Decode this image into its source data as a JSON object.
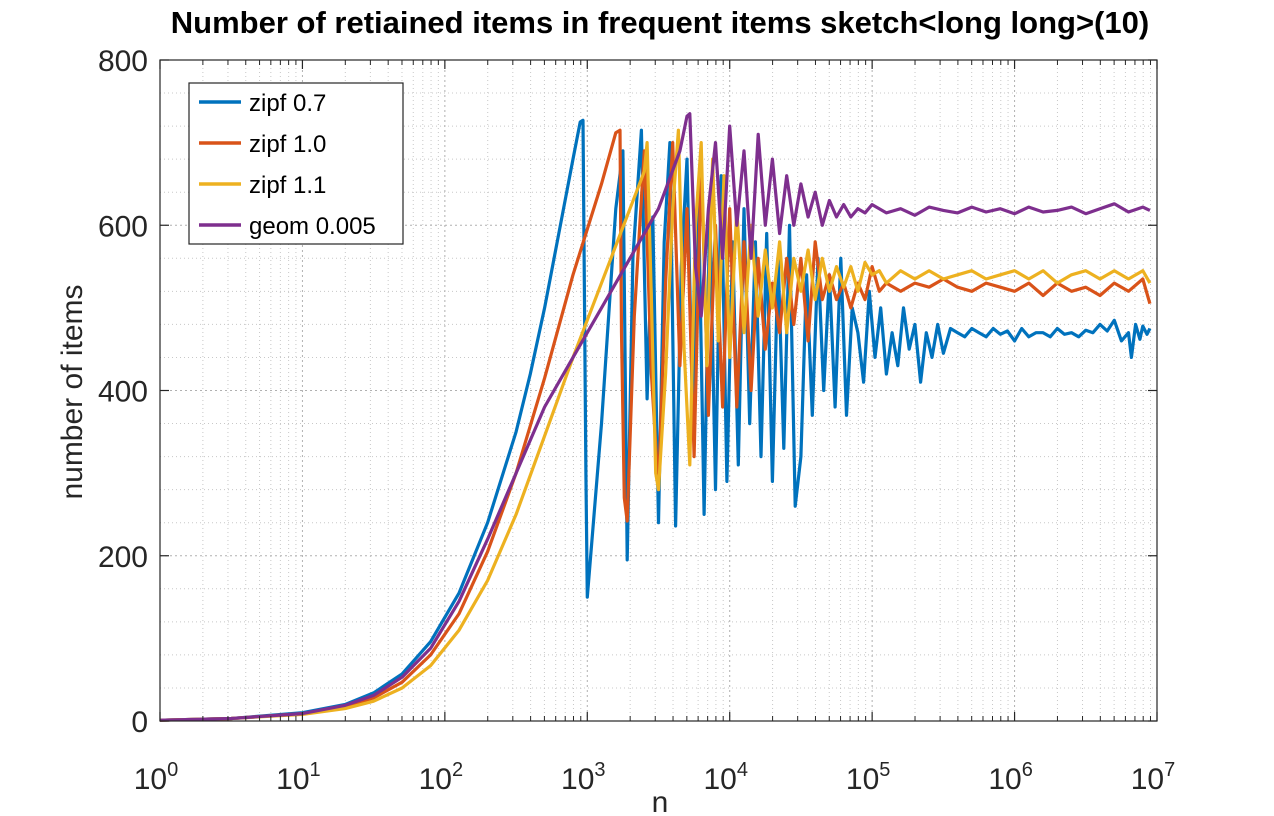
{
  "chart_data": {
    "type": "line",
    "title": "Number of retiained items in frequent items sketch<long long>(10)",
    "xlabel": "n",
    "ylabel": "number of items",
    "xscale": "log",
    "xlim_log10": [
      0,
      7
    ],
    "ylim": [
      0,
      800
    ],
    "xtick_base": "10",
    "xtick_exponents": [
      "0",
      "1",
      "2",
      "3",
      "4",
      "5",
      "6",
      "7"
    ],
    "yticks": [
      0,
      200,
      400,
      600,
      800
    ],
    "ytick_labels": [
      "0",
      "200",
      "400",
      "600",
      "800"
    ],
    "grid": "on",
    "legend_location": "top-left",
    "series": [
      {
        "name": "zipf 0.7",
        "color": "#0072BD",
        "points": [
          [
            0,
            1
          ],
          [
            0.5,
            3
          ],
          [
            1,
            10
          ],
          [
            1.3,
            20
          ],
          [
            1.5,
            34
          ],
          [
            1.7,
            57
          ],
          [
            1.9,
            96
          ],
          [
            2.1,
            155
          ],
          [
            2.3,
            240
          ],
          [
            2.5,
            350
          ],
          [
            2.6,
            420
          ],
          [
            2.7,
            500
          ],
          [
            2.8,
            590
          ],
          [
            2.9,
            680
          ],
          [
            2.95,
            725
          ],
          [
            2.97,
            727
          ],
          [
            2.99,
            300
          ],
          [
            3.0,
            150
          ],
          [
            3.1,
            360
          ],
          [
            3.2,
            620
          ],
          [
            3.25,
            690
          ],
          [
            3.28,
            195
          ],
          [
            3.32,
            560
          ],
          [
            3.38,
            715
          ],
          [
            3.42,
            390
          ],
          [
            3.46,
            610
          ],
          [
            3.5,
            240
          ],
          [
            3.54,
            580
          ],
          [
            3.58,
            700
          ],
          [
            3.62,
            236
          ],
          [
            3.66,
            550
          ],
          [
            3.7,
            680
          ],
          [
            3.74,
            370
          ],
          [
            3.78,
            640
          ],
          [
            3.82,
            250
          ],
          [
            3.86,
            620
          ],
          [
            3.9,
            280
          ],
          [
            3.94,
            660
          ],
          [
            3.98,
            290
          ],
          [
            4.02,
            580
          ],
          [
            4.06,
            310
          ],
          [
            4.1,
            620
          ],
          [
            4.14,
            360
          ],
          [
            4.18,
            580
          ],
          [
            4.22,
            320
          ],
          [
            4.26,
            590
          ],
          [
            4.3,
            290
          ],
          [
            4.34,
            560
          ],
          [
            4.38,
            330
          ],
          [
            4.42,
            600
          ],
          [
            4.46,
            260
          ],
          [
            4.5,
            320
          ],
          [
            4.54,
            540
          ],
          [
            4.58,
            370
          ],
          [
            4.62,
            560
          ],
          [
            4.66,
            400
          ],
          [
            4.7,
            540
          ],
          [
            4.74,
            380
          ],
          [
            4.78,
            560
          ],
          [
            4.82,
            370
          ],
          [
            4.86,
            500
          ],
          [
            4.9,
            470
          ],
          [
            4.94,
            410
          ],
          [
            4.98,
            520
          ],
          [
            5.02,
            440
          ],
          [
            5.06,
            500
          ],
          [
            5.1,
            420
          ],
          [
            5.14,
            470
          ],
          [
            5.18,
            430
          ],
          [
            5.22,
            500
          ],
          [
            5.26,
            450
          ],
          [
            5.3,
            480
          ],
          [
            5.34,
            410
          ],
          [
            5.38,
            470
          ],
          [
            5.42,
            440
          ],
          [
            5.46,
            480
          ],
          [
            5.5,
            445
          ],
          [
            5.55,
            475
          ],
          [
            5.6,
            470
          ],
          [
            5.65,
            465
          ],
          [
            5.7,
            475
          ],
          [
            5.75,
            470
          ],
          [
            5.8,
            465
          ],
          [
            5.85,
            475
          ],
          [
            5.9,
            468
          ],
          [
            5.95,
            472
          ],
          [
            6.0,
            460
          ],
          [
            6.05,
            475
          ],
          [
            6.1,
            465
          ],
          [
            6.15,
            470
          ],
          [
            6.2,
            470
          ],
          [
            6.25,
            465
          ],
          [
            6.3,
            475
          ],
          [
            6.35,
            468
          ],
          [
            6.4,
            470
          ],
          [
            6.45,
            465
          ],
          [
            6.5,
            473
          ],
          [
            6.55,
            470
          ],
          [
            6.6,
            480
          ],
          [
            6.65,
            472
          ],
          [
            6.7,
            485
          ],
          [
            6.75,
            460
          ],
          [
            6.8,
            470
          ],
          [
            6.82,
            440
          ],
          [
            6.85,
            480
          ],
          [
            6.88,
            462
          ],
          [
            6.9,
            478
          ],
          [
            6.93,
            468
          ],
          [
            6.95,
            475
          ]
        ]
      },
      {
        "name": "zipf 1.0",
        "color": "#D95319",
        "points": [
          [
            0,
            1
          ],
          [
            0.5,
            3
          ],
          [
            1,
            9
          ],
          [
            1.3,
            17
          ],
          [
            1.5,
            28
          ],
          [
            1.7,
            47
          ],
          [
            1.9,
            80
          ],
          [
            2.1,
            130
          ],
          [
            2.3,
            205
          ],
          [
            2.5,
            300
          ],
          [
            2.7,
            415
          ],
          [
            2.9,
            540
          ],
          [
            3.1,
            650
          ],
          [
            3.2,
            712
          ],
          [
            3.23,
            715
          ],
          [
            3.24,
            470
          ],
          [
            3.26,
            270
          ],
          [
            3.28,
            242
          ],
          [
            3.33,
            490
          ],
          [
            3.4,
            690
          ],
          [
            3.45,
            420
          ],
          [
            3.5,
            280
          ],
          [
            3.55,
            530
          ],
          [
            3.6,
            700
          ],
          [
            3.65,
            430
          ],
          [
            3.7,
            620
          ],
          [
            3.75,
            320
          ],
          [
            3.8,
            680
          ],
          [
            3.85,
            370
          ],
          [
            3.9,
            600
          ],
          [
            3.95,
            380
          ],
          [
            4.0,
            620
          ],
          [
            4.05,
            380
          ],
          [
            4.1,
            580
          ],
          [
            4.15,
            400
          ],
          [
            4.2,
            560
          ],
          [
            4.25,
            450
          ],
          [
            4.3,
            530
          ],
          [
            4.35,
            470
          ],
          [
            4.4,
            560
          ],
          [
            4.45,
            480
          ],
          [
            4.5,
            560
          ],
          [
            4.55,
            460
          ],
          [
            4.6,
            580
          ],
          [
            4.65,
            510
          ],
          [
            4.7,
            540
          ],
          [
            4.75,
            510
          ],
          [
            4.8,
            530
          ],
          [
            4.85,
            500
          ],
          [
            4.9,
            530
          ],
          [
            4.95,
            510
          ],
          [
            5.0,
            550
          ],
          [
            5.05,
            520
          ],
          [
            5.1,
            530
          ],
          [
            5.2,
            520
          ],
          [
            5.3,
            530
          ],
          [
            5.4,
            525
          ],
          [
            5.5,
            535
          ],
          [
            5.6,
            525
          ],
          [
            5.7,
            520
          ],
          [
            5.8,
            530
          ],
          [
            5.9,
            525
          ],
          [
            6.0,
            520
          ],
          [
            6.1,
            530
          ],
          [
            6.2,
            515
          ],
          [
            6.3,
            530
          ],
          [
            6.4,
            520
          ],
          [
            6.5,
            525
          ],
          [
            6.6,
            515
          ],
          [
            6.7,
            530
          ],
          [
            6.8,
            520
          ],
          [
            6.9,
            535
          ],
          [
            6.95,
            505
          ]
        ]
      },
      {
        "name": "zipf 1.1",
        "color": "#EDB120",
        "points": [
          [
            0,
            1
          ],
          [
            0.5,
            3
          ],
          [
            1,
            8
          ],
          [
            1.3,
            15
          ],
          [
            1.5,
            24
          ],
          [
            1.7,
            40
          ],
          [
            1.9,
            67
          ],
          [
            2.1,
            110
          ],
          [
            2.3,
            170
          ],
          [
            2.5,
            250
          ],
          [
            2.7,
            345
          ],
          [
            2.9,
            440
          ],
          [
            3.1,
            530
          ],
          [
            3.3,
            620
          ],
          [
            3.4,
            665
          ],
          [
            3.42,
            700
          ],
          [
            3.45,
            510
          ],
          [
            3.48,
            300
          ],
          [
            3.5,
            280
          ],
          [
            3.55,
            420
          ],
          [
            3.6,
            620
          ],
          [
            3.64,
            715
          ],
          [
            3.68,
            450
          ],
          [
            3.72,
            310
          ],
          [
            3.76,
            600
          ],
          [
            3.8,
            700
          ],
          [
            3.84,
            430
          ],
          [
            3.88,
            680
          ],
          [
            3.92,
            460
          ],
          [
            3.96,
            660
          ],
          [
            4.0,
            440
          ],
          [
            4.05,
            620
          ],
          [
            4.1,
            470
          ],
          [
            4.15,
            600
          ],
          [
            4.2,
            490
          ],
          [
            4.25,
            570
          ],
          [
            4.3,
            500
          ],
          [
            4.35,
            580
          ],
          [
            4.4,
            470
          ],
          [
            4.45,
            560
          ],
          [
            4.5,
            520
          ],
          [
            4.55,
            570
          ],
          [
            4.6,
            510
          ],
          [
            4.65,
            560
          ],
          [
            4.7,
            520
          ],
          [
            4.75,
            550
          ],
          [
            4.8,
            525
          ],
          [
            4.85,
            550
          ],
          [
            4.9,
            520
          ],
          [
            4.95,
            555
          ],
          [
            5.0,
            540
          ],
          [
            5.05,
            545
          ],
          [
            5.1,
            530
          ],
          [
            5.2,
            545
          ],
          [
            5.3,
            535
          ],
          [
            5.4,
            545
          ],
          [
            5.5,
            535
          ],
          [
            5.6,
            540
          ],
          [
            5.7,
            545
          ],
          [
            5.8,
            535
          ],
          [
            5.9,
            540
          ],
          [
            6.0,
            545
          ],
          [
            6.1,
            535
          ],
          [
            6.2,
            545
          ],
          [
            6.3,
            530
          ],
          [
            6.4,
            540
          ],
          [
            6.5,
            545
          ],
          [
            6.6,
            535
          ],
          [
            6.7,
            545
          ],
          [
            6.8,
            535
          ],
          [
            6.9,
            545
          ],
          [
            6.95,
            530
          ]
        ]
      },
      {
        "name": "geom 0.005",
        "color": "#7E2F8E",
        "points": [
          [
            0,
            1
          ],
          [
            0.5,
            3
          ],
          [
            1,
            9
          ],
          [
            1.3,
            19
          ],
          [
            1.5,
            31
          ],
          [
            1.7,
            53
          ],
          [
            1.9,
            88
          ],
          [
            2.1,
            145
          ],
          [
            2.3,
            220
          ],
          [
            2.5,
            300
          ],
          [
            2.7,
            380
          ],
          [
            2.9,
            440
          ],
          [
            3.1,
            500
          ],
          [
            3.3,
            560
          ],
          [
            3.5,
            620
          ],
          [
            3.65,
            690
          ],
          [
            3.7,
            732
          ],
          [
            3.72,
            735
          ],
          [
            3.76,
            550
          ],
          [
            3.8,
            490
          ],
          [
            3.85,
            620
          ],
          [
            3.9,
            700
          ],
          [
            3.95,
            560
          ],
          [
            4.0,
            720
          ],
          [
            4.05,
            600
          ],
          [
            4.1,
            690
          ],
          [
            4.15,
            560
          ],
          [
            4.2,
            710
          ],
          [
            4.25,
            600
          ],
          [
            4.3,
            680
          ],
          [
            4.35,
            590
          ],
          [
            4.4,
            660
          ],
          [
            4.45,
            600
          ],
          [
            4.5,
            650
          ],
          [
            4.55,
            610
          ],
          [
            4.6,
            640
          ],
          [
            4.65,
            600
          ],
          [
            4.7,
            630
          ],
          [
            4.75,
            610
          ],
          [
            4.8,
            625
          ],
          [
            4.85,
            610
          ],
          [
            4.9,
            620
          ],
          [
            4.95,
            615
          ],
          [
            5.0,
            625
          ],
          [
            5.1,
            615
          ],
          [
            5.2,
            620
          ],
          [
            5.3,
            612
          ],
          [
            5.4,
            622
          ],
          [
            5.5,
            618
          ],
          [
            5.6,
            615
          ],
          [
            5.7,
            622
          ],
          [
            5.8,
            616
          ],
          [
            5.9,
            620
          ],
          [
            6.0,
            614
          ],
          [
            6.1,
            622
          ],
          [
            6.2,
            616
          ],
          [
            6.3,
            618
          ],
          [
            6.4,
            622
          ],
          [
            6.5,
            614
          ],
          [
            6.6,
            620
          ],
          [
            6.7,
            626
          ],
          [
            6.8,
            616
          ],
          [
            6.9,
            622
          ],
          [
            6.95,
            618
          ]
        ]
      }
    ]
  }
}
